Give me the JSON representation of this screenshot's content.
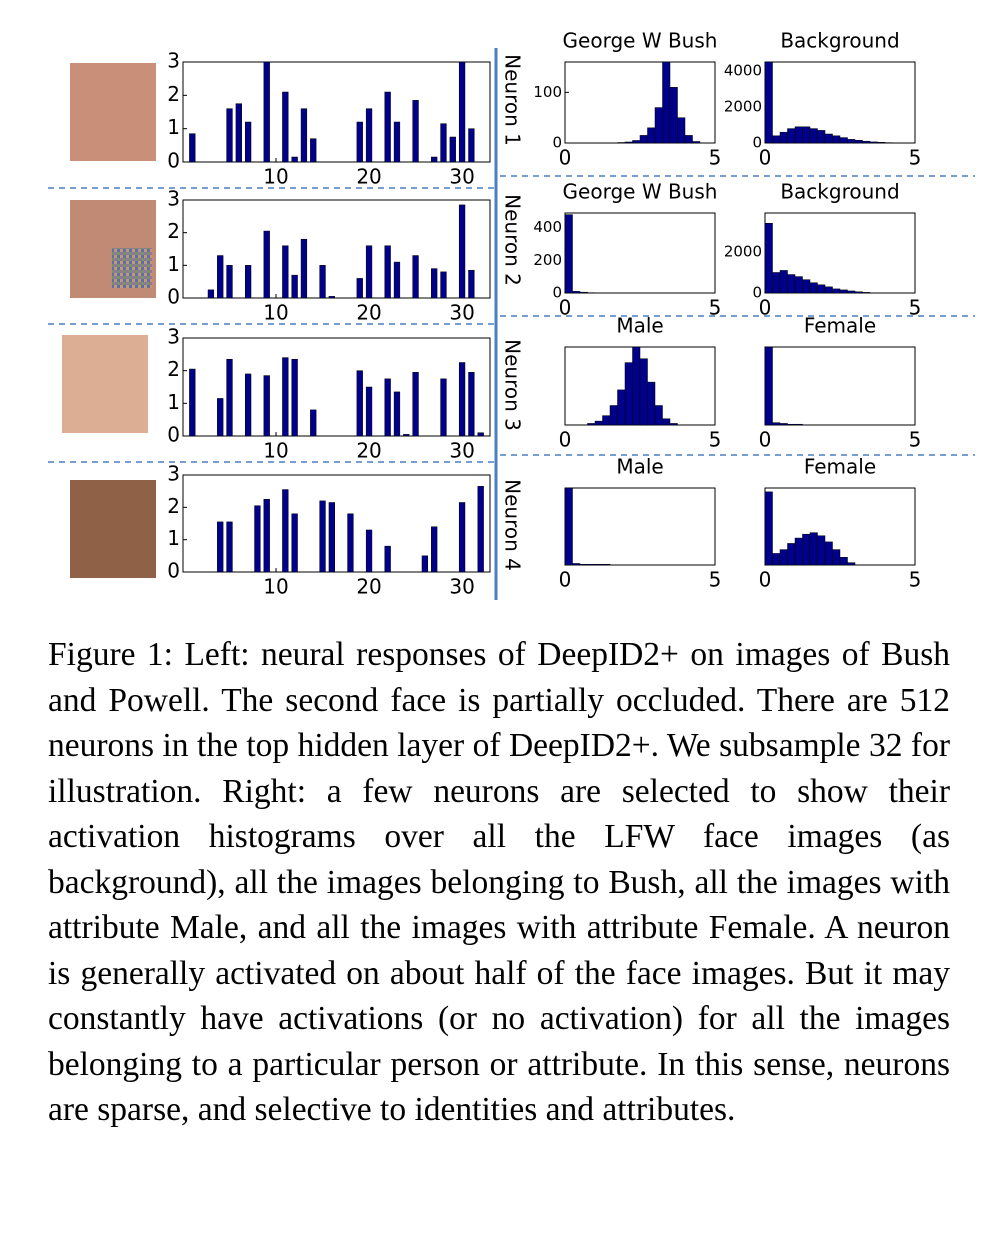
{
  "chart_data": [
    {
      "type": "bar",
      "x": [
        1,
        2,
        3,
        4,
        5,
        6,
        7,
        8,
        9,
        10,
        11,
        12,
        13,
        14,
        15,
        16,
        17,
        18,
        19,
        20,
        21,
        22,
        23,
        24,
        25,
        26,
        27,
        28,
        29,
        30,
        31,
        32
      ],
      "values": [
        0.85,
        0,
        0,
        0,
        1.6,
        1.75,
        1.2,
        0,
        3,
        0,
        2.1,
        0.15,
        1.6,
        0.7,
        0,
        0,
        0,
        0,
        1.2,
        1.6,
        0,
        2.1,
        1.2,
        0,
        1.85,
        0,
        0.15,
        1.15,
        0.75,
        3,
        1.0,
        0
      ],
      "xlim": [
        0,
        33
      ],
      "ylim": [
        0,
        3
      ],
      "xticks": [
        10,
        20,
        30
      ],
      "yticks": [
        0,
        1,
        2,
        3
      ],
      "color": "#00008b"
    },
    {
      "type": "bar",
      "x": [
        1,
        2,
        3,
        4,
        5,
        6,
        7,
        8,
        9,
        10,
        11,
        12,
        13,
        14,
        15,
        16,
        17,
        18,
        19,
        20,
        21,
        22,
        23,
        24,
        25,
        26,
        27,
        28,
        29,
        30,
        31,
        32
      ],
      "values": [
        0,
        0,
        0.25,
        1.3,
        1.0,
        0,
        1.0,
        0,
        2.05,
        0,
        1.6,
        0.7,
        1.8,
        0,
        1.0,
        0.05,
        0,
        0,
        0.6,
        1.6,
        0,
        1.6,
        1.1,
        0,
        1.3,
        0,
        0.9,
        0.8,
        0,
        2.85,
        0.85,
        0
      ],
      "xlim": [
        0,
        33
      ],
      "ylim": [
        0,
        3
      ],
      "xticks": [
        10,
        20,
        30
      ],
      "yticks": [
        0,
        1,
        2,
        3
      ],
      "color": "#00008b"
    },
    {
      "type": "bar",
      "x": [
        1,
        2,
        3,
        4,
        5,
        6,
        7,
        8,
        9,
        10,
        11,
        12,
        13,
        14,
        15,
        16,
        17,
        18,
        19,
        20,
        21,
        22,
        23,
        24,
        25,
        26,
        27,
        28,
        29,
        30,
        31,
        32
      ],
      "values": [
        2.05,
        0,
        0,
        1.15,
        2.35,
        0,
        1.9,
        0,
        1.85,
        0,
        2.4,
        2.35,
        0,
        0.8,
        0,
        0,
        0,
        0,
        2.0,
        1.5,
        0,
        1.75,
        1.35,
        0.05,
        1.95,
        0,
        0,
        1.75,
        0,
        2.25,
        1.95,
        0.1
      ],
      "xlim": [
        0,
        33
      ],
      "ylim": [
        0,
        3
      ],
      "xticks": [
        10,
        20,
        30
      ],
      "yticks": [
        0,
        1,
        2,
        3
      ],
      "color": "#00008b"
    },
    {
      "type": "bar",
      "x": [
        1,
        2,
        3,
        4,
        5,
        6,
        7,
        8,
        9,
        10,
        11,
        12,
        13,
        14,
        15,
        16,
        17,
        18,
        19,
        20,
        21,
        22,
        23,
        24,
        25,
        26,
        27,
        28,
        29,
        30,
        31,
        32
      ],
      "values": [
        0,
        0,
        0,
        1.55,
        1.55,
        0,
        0,
        2.05,
        2.25,
        0,
        2.55,
        1.8,
        0,
        0,
        2.2,
        2.15,
        0,
        1.8,
        0,
        1.3,
        0,
        0.8,
        0,
        0,
        0,
        0.5,
        1.4,
        0,
        0,
        2.15,
        0,
        2.65
      ],
      "xlim": [
        0,
        33
      ],
      "ylim": [
        0,
        3
      ],
      "xticks": [
        10,
        20,
        30
      ],
      "yticks": [
        0,
        1,
        2,
        3
      ],
      "color": "#00008b"
    },
    {
      "type": "histogram",
      "title": "George W Bush",
      "bins": [
        0,
        0.25,
        0.5,
        0.75,
        1,
        1.25,
        1.5,
        1.75,
        2,
        2.25,
        2.5,
        2.75,
        3,
        3.25,
        3.5,
        3.75,
        4,
        4.25,
        4.5,
        4.75,
        5
      ],
      "values": [
        0,
        0,
        0,
        0,
        0,
        0,
        0,
        1,
        2,
        5,
        15,
        30,
        70,
        160,
        110,
        50,
        15,
        3,
        0,
        0
      ],
      "xlim": [
        0,
        5
      ],
      "ylim": [
        0,
        160
      ],
      "xticks": [
        0,
        5
      ],
      "yticks": [
        0,
        100
      ],
      "color": "#00008b"
    },
    {
      "type": "histogram",
      "title": "Background",
      "bins": [
        0,
        0.25,
        0.5,
        0.75,
        1,
        1.25,
        1.5,
        1.75,
        2,
        2.25,
        2.5,
        2.75,
        3,
        3.25,
        3.5,
        3.75,
        4,
        4.25,
        4.5,
        4.75,
        5
      ],
      "values": [
        4500,
        400,
        600,
        800,
        900,
        900,
        800,
        700,
        500,
        400,
        300,
        200,
        150,
        100,
        60,
        40,
        20,
        10,
        5,
        0
      ],
      "xlim": [
        0,
        5
      ],
      "ylim": [
        0,
        4500
      ],
      "xticks": [
        0,
        5
      ],
      "yticks": [
        0,
        2000,
        4000
      ],
      "color": "#00008b"
    },
    {
      "type": "histogram",
      "title": "George W Bush",
      "bins": [
        0,
        0.25,
        0.5,
        0.75,
        1,
        1.25,
        1.5,
        1.75,
        2,
        2.25,
        2.5,
        2.75,
        3,
        3.25,
        3.5,
        3.75,
        4,
        4.25,
        4.5,
        4.75,
        5
      ],
      "values": [
        480,
        10,
        5,
        2,
        1,
        0,
        0,
        0,
        0,
        0,
        0,
        0,
        0,
        0,
        0,
        0,
        0,
        0,
        0,
        0
      ],
      "xlim": [
        0,
        5
      ],
      "ylim": [
        0,
        490
      ],
      "xticks": [
        0,
        5
      ],
      "yticks": [
        0,
        200,
        400
      ],
      "color": "#00008b"
    },
    {
      "type": "histogram",
      "title": "Background",
      "bins": [
        0,
        0.25,
        0.5,
        0.75,
        1,
        1.25,
        1.5,
        1.75,
        2,
        2.25,
        2.5,
        2.75,
        3,
        3.25,
        3.5,
        3.75,
        4,
        4.25,
        4.5,
        4.75,
        5
      ],
      "values": [
        3400,
        1000,
        1100,
        900,
        800,
        650,
        500,
        400,
        300,
        200,
        150,
        100,
        60,
        30,
        10,
        5,
        0,
        0,
        0,
        0
      ],
      "xlim": [
        0,
        5
      ],
      "ylim": [
        0,
        3900
      ],
      "xticks": [
        0,
        5
      ],
      "yticks": [
        0,
        2000
      ],
      "color": "#00008b"
    },
    {
      "type": "histogram",
      "title": "Male",
      "bins": [
        0,
        0.25,
        0.5,
        0.75,
        1,
        1.25,
        1.5,
        1.75,
        2,
        2.25,
        2.5,
        2.75,
        3,
        3.25,
        3.5,
        3.75,
        4,
        4.25,
        4.5,
        4.75,
        5
      ],
      "values": [
        0,
        0,
        0,
        2,
        5,
        12,
        25,
        45,
        80,
        100,
        85,
        55,
        25,
        8,
        2,
        0,
        0,
        0,
        0,
        0
      ],
      "xlim": [
        0,
        5
      ],
      "ylim": [
        0,
        100
      ],
      "xticks": [
        0,
        5
      ],
      "color": "#00008b"
    },
    {
      "type": "histogram",
      "title": "Female",
      "bins": [
        0,
        0.25,
        0.5,
        0.75,
        1,
        1.25,
        1.5,
        1.75,
        2,
        2.25,
        2.5,
        2.75,
        3,
        3.25,
        3.5,
        3.75,
        4,
        4.25,
        4.5,
        4.75,
        5
      ],
      "values": [
        100,
        3,
        2,
        1,
        1,
        0,
        0,
        0,
        0,
        0,
        0,
        0,
        0,
        0,
        0,
        0,
        0,
        0,
        0,
        0
      ],
      "xlim": [
        0,
        5
      ],
      "ylim": [
        0,
        100
      ],
      "xticks": [
        0,
        5
      ],
      "color": "#00008b"
    },
    {
      "type": "histogram",
      "title": "Male",
      "bins": [
        0,
        0.25,
        0.5,
        0.75,
        1,
        1.25,
        1.5,
        1.75,
        2,
        2.25,
        2.5,
        2.75,
        3,
        3.25,
        3.5,
        3.75,
        4,
        4.25,
        4.5,
        4.75,
        5
      ],
      "values": [
        100,
        2,
        1,
        1,
        1,
        1,
        0,
        0,
        0,
        0,
        0,
        0,
        0,
        0,
        0,
        0,
        0,
        0,
        0,
        0
      ],
      "xlim": [
        0,
        5
      ],
      "ylim": [
        0,
        100
      ],
      "xticks": [
        0,
        5
      ],
      "color": "#00008b"
    },
    {
      "type": "histogram",
      "title": "Female",
      "bins": [
        0,
        0.25,
        0.5,
        0.75,
        1,
        1.25,
        1.5,
        1.75,
        2,
        2.25,
        2.5,
        2.75,
        3,
        3.25,
        3.5,
        3.75,
        4,
        4.25,
        4.5,
        4.75,
        5
      ],
      "values": [
        95,
        15,
        20,
        28,
        35,
        40,
        42,
        38,
        30,
        20,
        10,
        3,
        0,
        0,
        0,
        0,
        0,
        0,
        0,
        0
      ],
      "xlim": [
        0,
        5
      ],
      "ylim": [
        0,
        100
      ],
      "xticks": [
        0,
        5
      ],
      "color": "#00008b"
    }
  ],
  "neuron_labels": [
    "Neuron 1",
    "Neuron 2",
    "Neuron 3",
    "Neuron 4"
  ],
  "caption": "Figure 1: Left: neural responses of DeepID2+ on images of Bush and Powell. The second face is partially occluded. There are 512 neurons in the top hidden layer of DeepID2+. We subsample 32 for illustration. Right: a few neurons are selected to show their activation histograms over all the LFW face images (as background), all the images belonging to Bush, all the images with attribute Male, and all the images with attribute Female. A neuron is generally activated on about half of the face images. But it may constantly have activations (or no activation) for all the images belonging to a particular person or attribute. In this sense, neurons are sparse, and selective to identities and attributes."
}
